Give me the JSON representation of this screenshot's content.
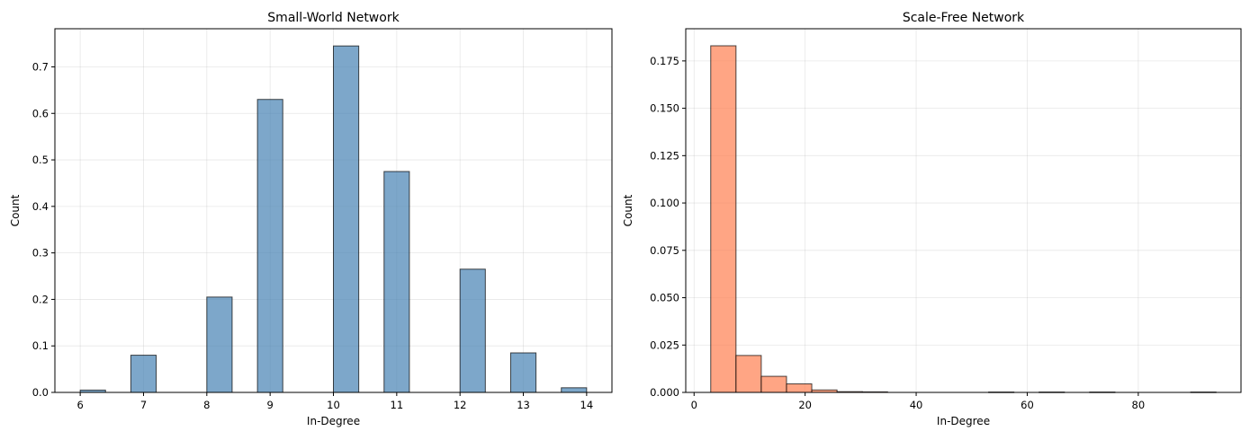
{
  "chart_data": [
    {
      "type": "bar",
      "title": "Small-World Network",
      "xlabel": "In-Degree",
      "ylabel": "Count",
      "xlim": [
        5.6,
        14.4
      ],
      "ylim": [
        0,
        0.782
      ],
      "xticks": [
        6,
        7,
        8,
        9,
        10,
        11,
        12,
        13,
        14
      ],
      "yticks": [
        0.0,
        0.1,
        0.2,
        0.3,
        0.4,
        0.5,
        0.6,
        0.7
      ],
      "ytick_decimals": 1,
      "grid": true,
      "bar_color": "#4682b4",
      "edge_color": "#000000",
      "bin_edges": [
        6.0,
        6.4,
        6.8,
        7.2,
        7.6,
        8.0,
        8.4,
        8.8,
        9.2,
        9.6,
        10.0,
        10.4,
        10.8,
        11.2,
        11.6,
        12.0,
        12.4,
        12.8,
        13.2,
        13.6,
        14.0
      ],
      "values": [
        0.005,
        0,
        0.08,
        0,
        0,
        0.205,
        0,
        0.63,
        0,
        0,
        0.745,
        0,
        0.475,
        0,
        0,
        0.265,
        0,
        0.085,
        0,
        0.01
      ]
    },
    {
      "type": "bar",
      "title": "Scale-Free Network",
      "xlabel": "In-Degree",
      "ylabel": "Count",
      "xlim": [
        -1.5,
        98.5
      ],
      "ylim": [
        0,
        0.192
      ],
      "xticks": [
        0,
        20,
        40,
        60,
        80
      ],
      "yticks": [
        0.0,
        0.025,
        0.05,
        0.075,
        0.1,
        0.125,
        0.15,
        0.175
      ],
      "ytick_decimals": 3,
      "grid": true,
      "bar_color": "#ff7f50",
      "edge_color": "#000000",
      "bin_edges": [
        3.0,
        7.55,
        12.1,
        16.65,
        21.2,
        25.75,
        30.3,
        34.85,
        39.4,
        43.95,
        48.5,
        53.05,
        57.6,
        62.15,
        66.7,
        71.25,
        75.8,
        80.35,
        84.9,
        89.45,
        94.0
      ],
      "values": [
        0.183,
        0.0195,
        0.0085,
        0.0045,
        0.0013,
        0.0004,
        0.0003,
        0,
        0,
        0,
        0,
        0.0002,
        0,
        0.0002,
        0,
        0.0002,
        0,
        0,
        0,
        0.0002
      ]
    }
  ]
}
